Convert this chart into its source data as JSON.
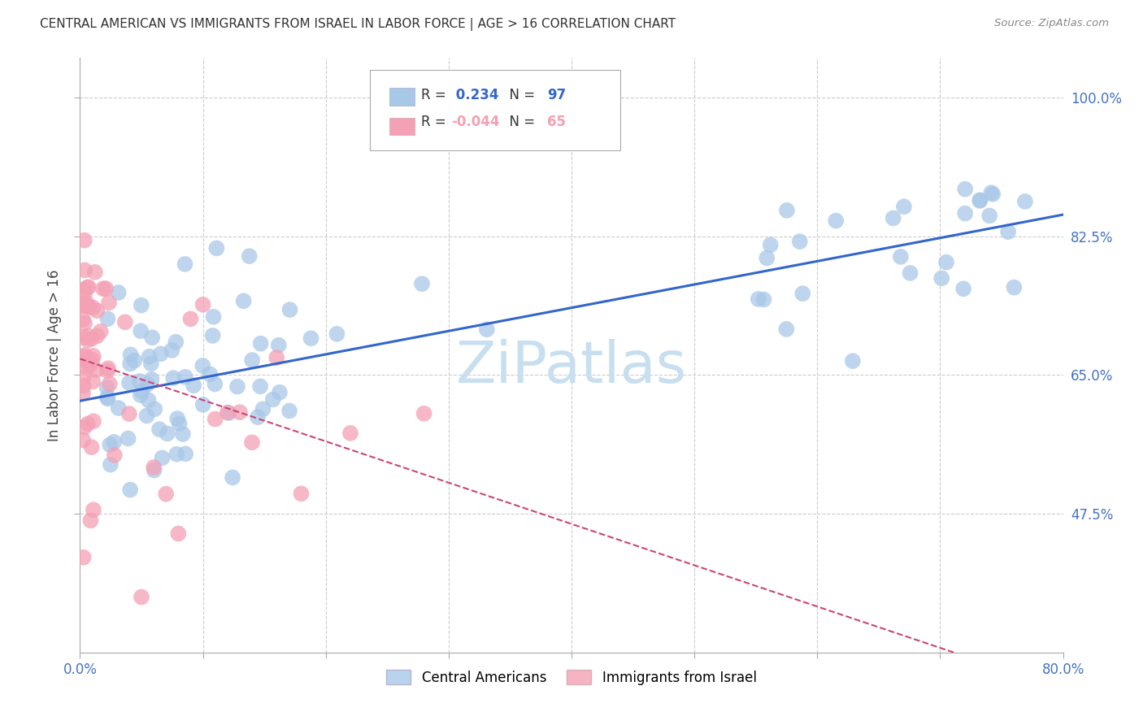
{
  "title": "CENTRAL AMERICAN VS IMMIGRANTS FROM ISRAEL IN LABOR FORCE | AGE > 16 CORRELATION CHART",
  "source": "Source: ZipAtlas.com",
  "ylabel": "In Labor Force | Age > 16",
  "xlim": [
    0.0,
    0.8
  ],
  "ylim": [
    0.3,
    1.05
  ],
  "yticks": [
    0.475,
    0.65,
    0.825,
    1.0
  ],
  "ytick_labels": [
    "47.5%",
    "65.0%",
    "82.5%",
    "100.0%"
  ],
  "xticks": [
    0.0,
    0.1,
    0.2,
    0.3,
    0.4,
    0.5,
    0.6,
    0.7,
    0.8
  ],
  "xtick_labels": [
    "0.0%",
    "",
    "",
    "",
    "",
    "",
    "",
    "",
    "80.0%"
  ],
  "blue_R": 0.234,
  "blue_N": 97,
  "pink_R": -0.044,
  "pink_N": 65,
  "blue_color": "#a8c8e8",
  "pink_color": "#f4a0b5",
  "blue_line_color": "#3366cc",
  "pink_line_color": "#cc4477",
  "grid_color": "#cccccc",
  "axis_label_color": "#4472c4",
  "background_color": "#ffffff",
  "watermark": "ZiPatlas",
  "watermark_color": "#c8dff0"
}
